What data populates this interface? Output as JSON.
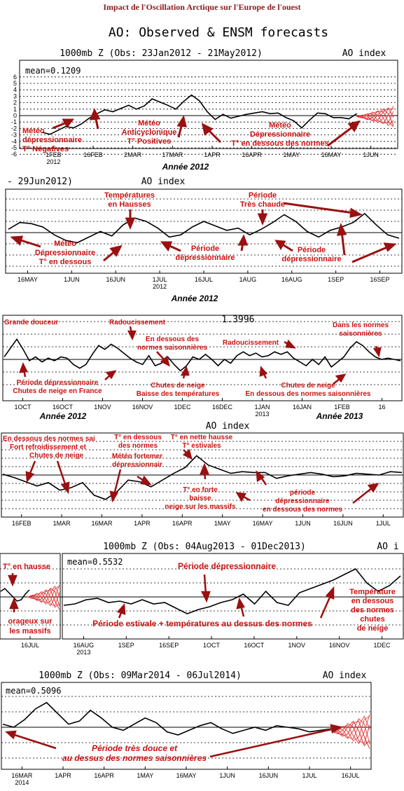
{
  "page": {
    "title": "Impact de l'Oscillation Arctique sur l'Europe de l'ouest",
    "colors": {
      "annotation": "#cc1111",
      "arrow": "#9b1010",
      "ensemble": "#e23b3b",
      "line": "#000000"
    }
  },
  "chart_data": [
    {
      "type": "line",
      "title": "AO: Observed & ENSM forecasts",
      "header": "1000mb Z (Obs: 23Jan2012 - 21May2012)",
      "index_label": "AO index",
      "mean_label": "mean=0.1209",
      "xlabel": "Année 2012",
      "ylim": [
        -6,
        6
      ],
      "ytick_labels": [
        "6",
        "5",
        "4",
        "3",
        "2",
        "1",
        "0",
        "-1",
        "-2",
        "-3",
        "-4",
        "-5",
        "-6"
      ],
      "xtick_labels": [
        "1FEB\n2012",
        "16FEB",
        "2MAR",
        "17MAR",
        "1APR",
        "16APR",
        "1MAY",
        "16MAY",
        "1JUN"
      ],
      "x": [
        0,
        3,
        6,
        9,
        12,
        15,
        18,
        21,
        24,
        27,
        30,
        33,
        36,
        39,
        42,
        45,
        48,
        51,
        54,
        57,
        60,
        63,
        66,
        69,
        72,
        75,
        78,
        81,
        84,
        87,
        90,
        93,
        96,
        99,
        102,
        105,
        108,
        111,
        114,
        117,
        120
      ],
      "series": [
        {
          "values": [
            -2.6,
            -2.9,
            -2.3,
            -1.7,
            -1.9,
            -1.3,
            -0.4,
            0.3,
            0.9,
            0.6,
            1.1,
            1.6,
            1.0,
            1.5,
            2.6,
            2.1,
            1.6,
            1.0,
            2.2,
            3.2,
            2.3,
            0.6,
            -0.6,
            0.2,
            -0.4,
            -0.1,
            0.2,
            0.4,
            0.6,
            0.3,
            0.4,
            -0.3,
            -0.8,
            -1.9,
            -0.7,
            0.4,
            0.3,
            -0.3,
            -0.3,
            -0.5,
            0.3
          ]
        }
      ],
      "forecast": {
        "x_start": 120,
        "x_end": 134,
        "range": [
          -1.8,
          1.5
        ]
      },
      "annotations": [
        "Météo\ndépressionnaire\nT° Négatives",
        "Météo\nAnticyclonique\nT° Positives",
        "Météo\nDépressionnaire\nT° en dessous des normes"
      ]
    },
    {
      "type": "line",
      "header": "- 29Jun2012)",
      "index_label": "AO index",
      "xlabel": "Année 2012",
      "xtick_labels": [
        "16MAY",
        "1JUN",
        "16JUN",
        "1JUL\n2012",
        "16JUL",
        "1AUG",
        "16AUG",
        "1SEP",
        "16SEP"
      ],
      "x": [
        0,
        4,
        8,
        12,
        16,
        20,
        24,
        28,
        32,
        36,
        40,
        44,
        48,
        52,
        56,
        60,
        64,
        68,
        72,
        76,
        80,
        84,
        88,
        92,
        96,
        100,
        104,
        108,
        112,
        116,
        120,
        124,
        128,
        132,
        136
      ],
      "series": [
        {
          "values": [
            0.3,
            0.9,
            0.8,
            0.5,
            -0.2,
            -0.7,
            -0.9,
            -0.4,
            0.1,
            -0.3,
            0.7,
            1.3,
            1.0,
            0.4,
            -0.4,
            -0.2,
            0.5,
            1.0,
            0.6,
            0.2,
            0.4,
            -0.2,
            0.3,
            0.9,
            1.6,
            1.0,
            0.1,
            -0.4,
            0.2,
            0.5,
            0.9,
            1.7,
            0.7,
            -0.2,
            -0.5
          ]
        }
      ],
      "annotations": [
        "Météo\nDépressionnaire\nT° en dessous",
        "Températures\nen Hausses",
        "Période\ndépressionnaire",
        "Période\nTrès chaude",
        "Période\ndépressionnaire"
      ]
    },
    {
      "type": "line",
      "header": "1.3996",
      "xlabel": "Année 2012",
      "xlabel2": "Année 2013",
      "xtick_labels": [
        "1OCT",
        "16OCT",
        "1NOV",
        "16NOV",
        "1DEC",
        "16DEC",
        "1JAN\n2013",
        "16JAN",
        "1FEB",
        "16"
      ],
      "x": [
        0,
        3,
        6,
        9,
        12,
        15,
        18,
        21,
        24,
        27,
        30,
        33,
        36,
        39,
        42,
        45,
        48,
        51,
        54,
        57,
        60,
        63,
        66,
        69,
        72,
        75,
        78,
        81,
        84,
        87,
        90,
        93,
        96,
        99,
        102,
        105,
        108,
        111,
        114,
        117,
        120,
        123,
        126,
        129,
        132,
        135,
        138,
        141,
        144,
        147,
        150,
        153,
        156,
        159,
        162,
        165,
        168,
        171,
        174,
        177,
        180,
        183,
        186,
        189
      ],
      "series": [
        {
          "values": [
            0.2,
            0.9,
            1.6,
            0.8,
            -0.1,
            0.2,
            -0.2,
            0.1,
            -0.1,
            0.2,
            0.1,
            -0.4,
            -0.7,
            -0.4,
            0.4,
            1.1,
            0.8,
            1.2,
            0.9,
            0.5,
            0.1,
            -0.2,
            -0.4,
            0.3,
            -0.5,
            -0.3,
            0.2,
            -0.4,
            -0.9,
            -0.5,
            0.2,
            0.0,
            0.4,
            0.0,
            -0.5,
            0.0,
            -0.3,
            0.3,
            0.6,
            0.3,
            0.5,
            0.2,
            0.3,
            0.6,
            0.4,
            0.6,
            0.1,
            -0.2,
            -0.5,
            0.0,
            -0.4,
            0.2,
            -0.6,
            -0.2,
            0.2,
            0.9,
            1.4,
            1.1,
            0.6,
            0.2,
            0.0,
            0.1,
            0.0,
            -0.1
          ]
        }
      ],
      "annotations": [
        "Grande douceur",
        "Période dépressionnaire\nChutes de neige en France",
        "Radoucissement",
        "En dessous des\nnormes saisonnières",
        "Chutes de neige\nBaisse des températures",
        "Radoucissement",
        "Chutes de neige\nEn dessous des normes saisonnières",
        "Dans les normes\nsaisonnières"
      ]
    },
    {
      "type": "line",
      "header": "AO index",
      "xtick_labels": [
        "16FEB",
        "1MAR",
        "16MAR",
        "1APR",
        "16APR",
        "1MAY",
        "16MAY",
        "1JUN",
        "16JUN",
        "1JUL"
      ],
      "x": [
        0,
        4,
        8,
        12,
        16,
        20,
        24,
        28,
        32,
        36,
        40,
        44,
        48,
        52,
        56,
        60,
        64,
        68,
        72,
        76,
        80,
        84,
        88,
        92,
        96,
        100,
        104,
        108,
        112,
        116,
        120,
        124,
        128,
        132,
        136,
        140
      ],
      "series": [
        {
          "values": [
            0.1,
            -0.3,
            -0.8,
            -1.3,
            -0.9,
            -1.8,
            -1.5,
            -0.9,
            -2.4,
            -2.9,
            -2.0,
            -0.6,
            -0.8,
            -1.4,
            -0.6,
            0.2,
            0.9,
            2.3,
            1.2,
            0.7,
            0.2,
            0.4,
            0.3,
            0.3,
            -0.4,
            -0.1,
            0.1,
            0.3,
            0.1,
            -0.2,
            -0.1,
            0.2,
            0.1,
            0.0,
            0.4,
            0.3
          ]
        }
      ],
      "annotations": [
        "En dessous des normes sai\nFort refroidissement et\nChutes de neige",
        "T° en dessous\ndes normes",
        "Météo fortemer\ndépressionnair",
        "T° en nette hausse\nT° estivales",
        "T° en forte\nbaisse\nneige sur les massifs",
        "période\ndépressionnaire\nen dessous des normes"
      ]
    },
    {
      "type": "line",
      "header": "1000mb Z (Obs: 04Aug2013 - 01Dec2013)",
      "index_label": "AO i",
      "mean_label": "mean=0.5532",
      "xtick_labels": [
        "16JUL",
        "16AUG\n2013",
        "1SEP",
        "16SEP",
        "1OCT",
        "16OCT",
        "1NOV",
        "16NOV",
        "1DEC"
      ],
      "x": [
        0,
        4,
        8,
        12,
        16,
        20,
        24,
        28,
        32,
        36,
        40,
        44,
        48,
        52,
        56,
        60,
        64,
        68,
        72,
        76,
        80,
        84,
        88,
        92,
        96,
        100,
        104,
        108,
        112,
        116,
        120
      ],
      "series": [
        {
          "values": [
            -0.6,
            -0.5,
            -0.2,
            -0.1,
            -0.4,
            -0.3,
            -0.5,
            -0.2,
            -0.5,
            -0.4,
            -0.8,
            -1.2,
            -0.9,
            -0.7,
            -0.4,
            -0.2,
            0.2,
            -0.5,
            0.4,
            -0.4,
            -0.6,
            0.3,
            0.6,
            0.9,
            1.2,
            1.6,
            2.0,
            1.0,
            0.4,
            0.8,
            1.5
          ]
        }
      ],
      "inset": {
        "values": [
          0.4,
          0.6,
          0.3,
          0.0,
          -0.3,
          -0.2,
          0.2,
          0.5
        ]
      },
      "annotations": [
        "T° en hausse",
        "orageux sur\nles massifs",
        "Période dépressionnaire",
        "Période estivale + températures au dessus des normes",
        "Température\nen dessous\ndes normes\nchutes\nde neige"
      ]
    },
    {
      "type": "line",
      "header": "1000mb Z (Obs: 09Mar2014 - 06Jul2014)",
      "index_label": "AO index",
      "mean_label": "mean=0.5096",
      "xtick_labels": [
        "16MAR\n2014",
        "1APR",
        "16APR",
        "1MAY",
        "16MAY",
        "1JUN",
        "16JUN",
        "1JUL",
        "16JUL"
      ],
      "x": [
        0,
        4,
        8,
        12,
        16,
        20,
        24,
        28,
        32,
        36,
        40,
        44,
        48,
        52,
        56,
        60,
        64,
        68,
        72,
        76,
        80,
        84,
        88,
        92,
        96,
        100,
        104,
        108,
        112,
        116,
        120
      ],
      "series": [
        {
          "values": [
            0.2,
            0.0,
            0.5,
            1.2,
            1.6,
            0.9,
            0.2,
            0.4,
            1.1,
            0.6,
            0.0,
            -0.2,
            0.2,
            0.6,
            0.3,
            -0.3,
            -0.5,
            -0.2,
            0.1,
            0.3,
            -0.1,
            -0.4,
            -0.2,
            0.0,
            -0.2,
            0.1,
            0.0,
            -0.1,
            -0.3,
            -0.2,
            -0.1
          ]
        }
      ],
      "forecast": {
        "x_start": 120,
        "x_end": 134,
        "range": [
          -1.4,
          0.9
        ]
      },
      "annotations": [
        "Période très douce et\nau dessus des normes saisonnières"
      ]
    }
  ]
}
